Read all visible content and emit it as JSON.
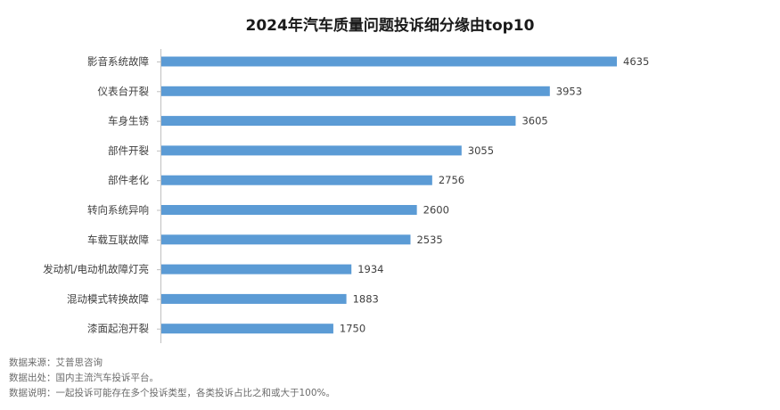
{
  "colors": {
    "bar": "#5b9bd5",
    "axis": "#bfbfbf",
    "label": "#404040",
    "value": "#404040"
  },
  "chart_data": {
    "type": "bar",
    "orientation": "horizontal",
    "title": "2024年汽车质量问题投诉细分缘由top10",
    "categories": [
      "影音系统故障",
      "仪表台开裂",
      "车身生锈",
      "部件开裂",
      "部件老化",
      "转向系统异响",
      "车载互联故障",
      "发动机/电动机故障灯亮",
      "混动模式转换故障",
      "漆面起泡开裂"
    ],
    "values": [
      4635,
      3953,
      3605,
      3055,
      2756,
      2600,
      2535,
      1934,
      1883,
      1750
    ],
    "xlim": [
      0,
      4635
    ],
    "grid": false,
    "legend": "none"
  },
  "footnotes": {
    "source": "数据来源：艾普思咨询",
    "origin": "数据出处：国内主流汽车投诉平台。",
    "note": "数据说明：一起投诉可能存在多个投诉类型，各类投诉占比之和或大于100%。"
  }
}
